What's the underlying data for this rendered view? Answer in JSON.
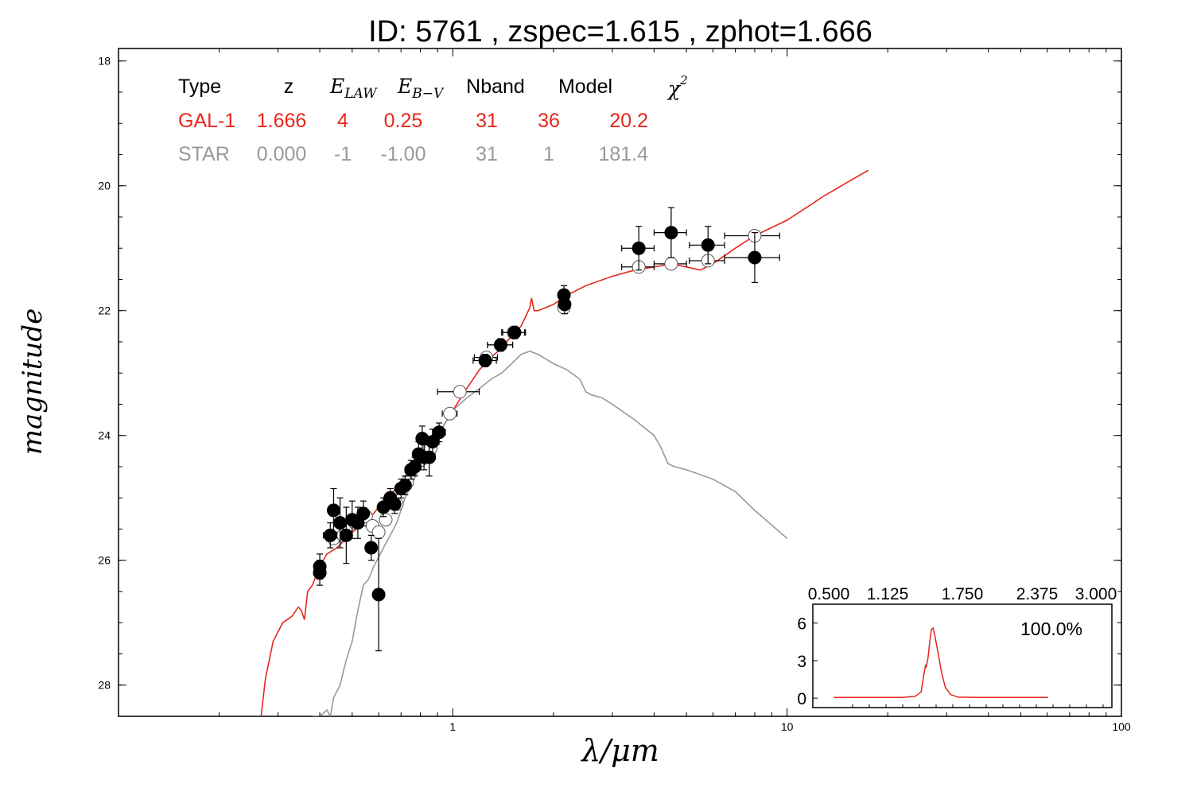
{
  "chart_data": [
    {
      "type": "scatter",
      "title": "ID:  5761  , zspec=1.615 , zphot=1.666",
      "xlabel": "λ/μm",
      "ylabel": "magnitude",
      "xscale": "log",
      "xlim": [
        0.1,
        100
      ],
      "ylim": [
        28.5,
        17.8
      ],
      "x_tick_labels": [
        "1",
        "10",
        "100"
      ],
      "y_tick_labels": [
        "18",
        "20",
        "22",
        "24",
        "26",
        "28"
      ],
      "grid": false,
      "fit_table": {
        "headers": [
          "Type",
          "z",
          "E_LAW",
          "E_B−V",
          "Nband",
          "Model",
          "χ²"
        ],
        "header_parts": {
          "elaw_main": "E",
          "elaw_sub": "LAW",
          "ebv_main": "E",
          "ebv_sub": "B−V",
          "chi_main": "χ",
          "chi_sup": "2"
        },
        "rows": [
          {
            "type": "GAL-1",
            "z": "1.666",
            "elaw": "4",
            "ebv": "0.25",
            "nband": "31",
            "model": "36",
            "chi2": "20.2",
            "color": "#e8261c"
          },
          {
            "type": "STAR",
            "z": "0.000",
            "elaw": "-1",
            "ebv": "-1.00",
            "nband": "31",
            "model": "1",
            "chi2": "181.4",
            "color": "#999999"
          }
        ]
      },
      "series": [
        {
          "name": "GAL-1",
          "kind": "line",
          "color": "#e8261c",
          "points": [
            [
              0.267,
              28.5
            ],
            [
              0.275,
              27.9
            ],
            [
              0.29,
              27.3
            ],
            [
              0.31,
              27.0
            ],
            [
              0.33,
              26.9
            ],
            [
              0.345,
              26.75
            ],
            [
              0.352,
              26.8
            ],
            [
              0.36,
              26.95
            ],
            [
              0.368,
              26.5
            ],
            [
              0.38,
              26.4
            ],
            [
              0.4,
              26.1
            ],
            [
              0.42,
              25.9
            ],
            [
              0.45,
              25.8
            ],
            [
              0.48,
              25.65
            ],
            [
              0.5,
              25.55
            ],
            [
              0.53,
              25.45
            ],
            [
              0.56,
              25.35
            ],
            [
              0.6,
              25.15
            ],
            [
              0.65,
              24.95
            ],
            [
              0.7,
              24.75
            ],
            [
              0.75,
              24.5
            ],
            [
              0.8,
              24.3
            ],
            [
              0.85,
              24.15
            ],
            [
              0.9,
              24.0
            ],
            [
              1.0,
              23.6
            ],
            [
              1.1,
              23.25
            ],
            [
              1.2,
              22.95
            ],
            [
              1.3,
              22.75
            ],
            [
              1.4,
              22.6
            ],
            [
              1.5,
              22.4
            ],
            [
              1.6,
              22.25
            ],
            [
              1.65,
              22.1
            ],
            [
              1.7,
              21.95
            ],
            [
              1.72,
              21.8
            ],
            [
              1.75,
              22.0
            ],
            [
              1.8,
              22.0
            ],
            [
              1.9,
              21.95
            ],
            [
              2.0,
              21.9
            ],
            [
              2.2,
              21.75
            ],
            [
              2.5,
              21.6
            ],
            [
              3.0,
              21.45
            ],
            [
              3.5,
              21.35
            ],
            [
              4.0,
              21.3
            ],
            [
              4.5,
              21.25
            ],
            [
              5.0,
              21.3
            ],
            [
              5.5,
              21.35
            ],
            [
              6.0,
              21.25
            ],
            [
              7.0,
              21.0
            ],
            [
              8.0,
              20.8
            ],
            [
              10.0,
              20.55
            ],
            [
              13.0,
              20.15
            ],
            [
              17.5,
              19.75
            ]
          ]
        },
        {
          "name": "STAR",
          "kind": "line",
          "color": "#999999",
          "points": [
            [
              0.38,
              28.5
            ],
            [
              0.4,
              28.5
            ],
            [
              0.42,
              28.4
            ],
            [
              0.43,
              28.5
            ],
            [
              0.44,
              28.2
            ],
            [
              0.46,
              28.0
            ],
            [
              0.48,
              27.6
            ],
            [
              0.5,
              27.3
            ],
            [
              0.52,
              26.8
            ],
            [
              0.54,
              26.4
            ],
            [
              0.56,
              26.3
            ],
            [
              0.58,
              26.1
            ],
            [
              0.6,
              25.95
            ],
            [
              0.62,
              25.8
            ],
            [
              0.65,
              25.6
            ],
            [
              0.68,
              25.4
            ],
            [
              0.7,
              25.2
            ],
            [
              0.72,
              25.0
            ],
            [
              0.75,
              24.8
            ],
            [
              0.8,
              24.5
            ],
            [
              0.85,
              24.3
            ],
            [
              0.9,
              24.0
            ],
            [
              0.95,
              23.8
            ],
            [
              1.0,
              23.6
            ],
            [
              1.1,
              23.4
            ],
            [
              1.2,
              23.25
            ],
            [
              1.3,
              23.1
            ],
            [
              1.4,
              23.0
            ],
            [
              1.5,
              22.85
            ],
            [
              1.6,
              22.7
            ],
            [
              1.7,
              22.65
            ],
            [
              1.8,
              22.7
            ],
            [
              2.0,
              22.85
            ],
            [
              2.2,
              22.95
            ],
            [
              2.4,
              23.1
            ],
            [
              2.5,
              23.3
            ],
            [
              2.6,
              23.35
            ],
            [
              2.8,
              23.4
            ],
            [
              3.0,
              23.5
            ],
            [
              3.5,
              23.75
            ],
            [
              4.0,
              24.0
            ],
            [
              4.2,
              24.2
            ],
            [
              4.4,
              24.45
            ],
            [
              4.6,
              24.5
            ],
            [
              5.0,
              24.55
            ],
            [
              6.0,
              24.7
            ],
            [
              7.0,
              24.9
            ],
            [
              8.0,
              25.2
            ],
            [
              10.0,
              25.65
            ]
          ]
        },
        {
          "name": "observed",
          "kind": "points",
          "fill": "#000000",
          "points": [
            {
              "x": 0.4,
              "y": 26.1,
              "xerr": 0.01,
              "yerr": 0.2
            },
            {
              "x": 0.4,
              "y": 26.2,
              "xerr": 0.01,
              "yerr": 0.2
            },
            {
              "x": 0.43,
              "y": 25.6,
              "xerr": 0.02,
              "yerr": 0.2
            },
            {
              "x": 0.44,
              "y": 25.2,
              "xerr": 0.01,
              "yerr": 0.35
            },
            {
              "x": 0.46,
              "y": 25.4,
              "xerr": 0.02,
              "yerr": 0.4
            },
            {
              "x": 0.48,
              "y": 25.6,
              "xerr": 0.01,
              "yerr": 0.45
            },
            {
              "x": 0.5,
              "y": 25.35,
              "xerr": 0.02,
              "yerr": 0.3
            },
            {
              "x": 0.52,
              "y": 25.4,
              "xerr": 0.01,
              "yerr": 0.25
            },
            {
              "x": 0.54,
              "y": 25.25,
              "xerr": 0.02,
              "yerr": 0.2
            },
            {
              "x": 0.57,
              "y": 25.8,
              "xerr": 0.01,
              "yerr": 0.2
            },
            {
              "x": 0.6,
              "y": 26.55,
              "xerr": 0.01,
              "yerr": 0.9
            },
            {
              "x": 0.62,
              "y": 25.15,
              "xerr": 0.02,
              "yerr": 0.15
            },
            {
              "x": 0.65,
              "y": 25.0,
              "xerr": 0.02,
              "yerr": 0.15
            },
            {
              "x": 0.67,
              "y": 25.1,
              "xerr": 0.02,
              "yerr": 0.15
            },
            {
              "x": 0.7,
              "y": 24.85,
              "xerr": 0.02,
              "yerr": 0.15
            },
            {
              "x": 0.72,
              "y": 24.8,
              "xerr": 0.03,
              "yerr": 0.15
            },
            {
              "x": 0.75,
              "y": 24.55,
              "xerr": 0.03,
              "yerr": 0.15
            },
            {
              "x": 0.77,
              "y": 24.5,
              "xerr": 0.03,
              "yerr": 0.15
            },
            {
              "x": 0.79,
              "y": 24.3,
              "xerr": 0.03,
              "yerr": 0.2
            },
            {
              "x": 0.81,
              "y": 24.05,
              "xerr": 0.03,
              "yerr": 0.2
            },
            {
              "x": 0.82,
              "y": 24.35,
              "xerr": 0.03,
              "yerr": 0.2
            },
            {
              "x": 0.85,
              "y": 24.35,
              "xerr": 0.03,
              "yerr": 0.3
            },
            {
              "x": 0.87,
              "y": 24.1,
              "xerr": 0.04,
              "yerr": 0.2
            },
            {
              "x": 0.91,
              "y": 23.95,
              "xerr": 0.04,
              "yerr": 0.15
            },
            {
              "x": 1.25,
              "y": 22.8,
              "xerr": 0.1,
              "yerr": 0.1
            },
            {
              "x": 1.39,
              "y": 22.55,
              "xerr": 0.12,
              "yerr": 0.1
            },
            {
              "x": 1.53,
              "y": 22.35,
              "xerr": 0.12,
              "yerr": 0.1
            },
            {
              "x": 2.15,
              "y": 21.75,
              "xerr": 0.05,
              "yerr": 0.15
            },
            {
              "x": 2.16,
              "y": 21.9,
              "xerr": 0.05,
              "yerr": 0.15
            },
            {
              "x": 3.6,
              "y": 21.0,
              "xerr": 0.4,
              "yerr": 0.35
            },
            {
              "x": 4.5,
              "y": 20.75,
              "xerr": 0.5,
              "yerr": 0.4
            },
            {
              "x": 5.8,
              "y": 20.95,
              "xerr": 0.7,
              "yerr": 0.3
            },
            {
              "x": 8.0,
              "y": 21.15,
              "xerr": 1.5,
              "yerr": 0.4
            }
          ]
        },
        {
          "name": "model",
          "kind": "points",
          "fill": "#ffffff",
          "points": [
            {
              "x": 0.4,
              "y": 26.2,
              "xerr": 0.01
            },
            {
              "x": 0.44,
              "y": 25.65,
              "xerr": 0.02
            },
            {
              "x": 0.47,
              "y": 25.6,
              "xerr": 0.02
            },
            {
              "x": 0.51,
              "y": 25.4,
              "xerr": 0.02
            },
            {
              "x": 0.55,
              "y": 25.3,
              "xerr": 0.02
            },
            {
              "x": 0.575,
              "y": 25.45,
              "xerr": 0.02
            },
            {
              "x": 0.6,
              "y": 25.55,
              "xerr": 0.02
            },
            {
              "x": 0.63,
              "y": 25.35,
              "xerr": 0.02
            },
            {
              "x": 0.68,
              "y": 25.1,
              "xerr": 0.02
            },
            {
              "x": 0.73,
              "y": 24.75,
              "xerr": 0.03
            },
            {
              "x": 0.8,
              "y": 24.4,
              "xerr": 0.03
            },
            {
              "x": 0.86,
              "y": 24.2,
              "xerr": 0.03
            },
            {
              "x": 0.98,
              "y": 23.65,
              "xerr": 0.05
            },
            {
              "x": 1.05,
              "y": 23.3,
              "xerr": 0.15
            },
            {
              "x": 1.26,
              "y": 22.75,
              "xerr": 0.1
            },
            {
              "x": 1.39,
              "y": 22.55,
              "xerr": 0.12
            },
            {
              "x": 1.52,
              "y": 22.35,
              "xerr": 0.12
            },
            {
              "x": 2.15,
              "y": 21.95,
              "xerr": 0.05
            },
            {
              "x": 3.6,
              "y": 21.3,
              "xerr": 0.4
            },
            {
              "x": 4.5,
              "y": 21.25,
              "xerr": 0.5
            },
            {
              "x": 5.8,
              "y": 21.2,
              "xerr": 0.7
            },
            {
              "x": 8.0,
              "y": 20.8,
              "xerr": 1.5
            }
          ]
        }
      ]
    },
    {
      "type": "line",
      "title": "",
      "annotation": "100.0%",
      "xlim": [
        0.5,
        3.0
      ],
      "ylim": [
        -0.5,
        7
      ],
      "x_tick_labels": [
        "0.500",
        "1.125",
        "1.750",
        "2.375",
        "3.000"
      ],
      "y_tick_labels": [
        "0",
        "3",
        "6"
      ],
      "series": [
        {
          "name": "PDZ",
          "color": "#e8261c",
          "points": [
            [
              0.5,
              0.05
            ],
            [
              1.3,
              0.05
            ],
            [
              1.45,
              0.15
            ],
            [
              1.52,
              0.5
            ],
            [
              1.55,
              1.8
            ],
            [
              1.57,
              2.6
            ],
            [
              1.58,
              2.5
            ],
            [
              1.6,
              3.2
            ],
            [
              1.62,
              4.5
            ],
            [
              1.64,
              5.5
            ],
            [
              1.66,
              5.6
            ],
            [
              1.68,
              5.0
            ],
            [
              1.72,
              3.5
            ],
            [
              1.76,
              2.0
            ],
            [
              1.8,
              0.9
            ],
            [
              1.86,
              0.3
            ],
            [
              1.95,
              0.08
            ],
            [
              2.2,
              0.05
            ],
            [
              3.0,
              0.05
            ]
          ]
        }
      ]
    }
  ]
}
